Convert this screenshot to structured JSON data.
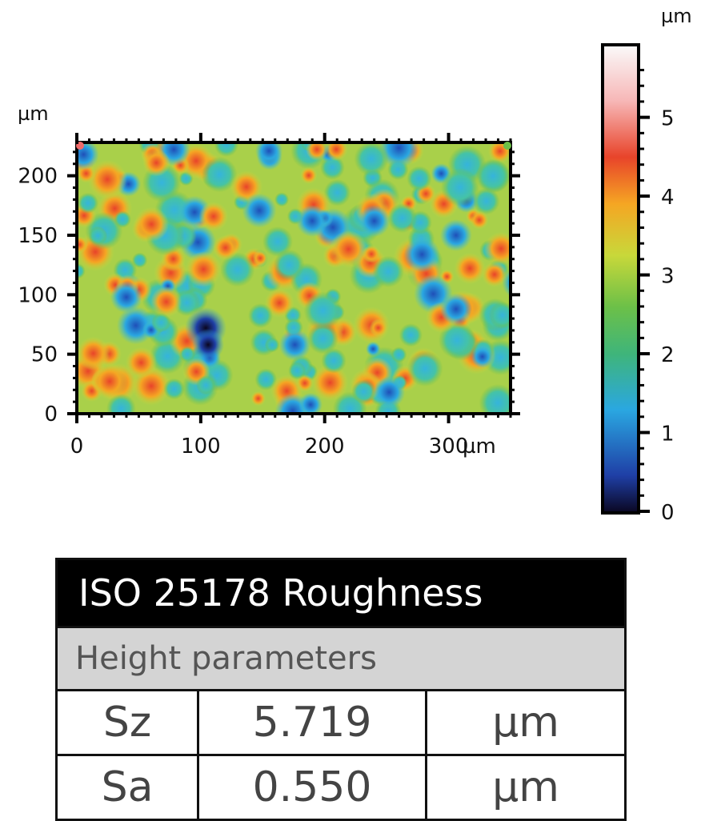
{
  "chart_data": [
    {
      "type": "heatmap",
      "x_unit": "µm",
      "y_unit": "µm",
      "x_ticks": [
        "0",
        "100",
        "200",
        "300"
      ],
      "y_ticks": [
        "0",
        "50",
        "100",
        "150",
        "200"
      ],
      "xlim": [
        0,
        350
      ],
      "ylim": [
        0,
        228
      ],
      "grid": false,
      "colormap": [
        "#0a0620",
        "#1f3fa6",
        "#2aa7e1",
        "#3fb57a",
        "#c8d83a",
        "#f5a623",
        "#e8442a",
        "#f7b7b7",
        "#fafafa"
      ],
      "dark_spots": [
        {
          "x": 104,
          "y": 72,
          "z": 0.0
        },
        {
          "x": 106,
          "y": 58,
          "z": 0.6
        },
        {
          "x": 40,
          "y": 98,
          "z": 0.9
        },
        {
          "x": 190,
          "y": 162,
          "z": 1.0
        },
        {
          "x": 240,
          "y": 162,
          "z": 0.9
        },
        {
          "x": 306,
          "y": 150,
          "z": 0.8
        },
        {
          "x": 306,
          "y": 88,
          "z": 1.0
        },
        {
          "x": 252,
          "y": 18,
          "z": 0.8
        },
        {
          "x": 176,
          "y": 58,
          "z": 1.0
        },
        {
          "x": 356,
          "y": 110,
          "z": 1.3
        }
      ]
    },
    {
      "type": "colorbar",
      "unit": "µm",
      "ticks": [
        "0",
        "1",
        "2",
        "3",
        "4",
        "5"
      ],
      "range": [
        0,
        5.9
      ]
    }
  ],
  "results_table": {
    "title": "ISO 25178 Roughness",
    "group": "Height parameters",
    "rows": [
      {
        "param": "Sz",
        "value": "5.719",
        "unit": "µm"
      },
      {
        "param": "Sa",
        "value": "0.550",
        "unit": "µm"
      }
    ]
  }
}
